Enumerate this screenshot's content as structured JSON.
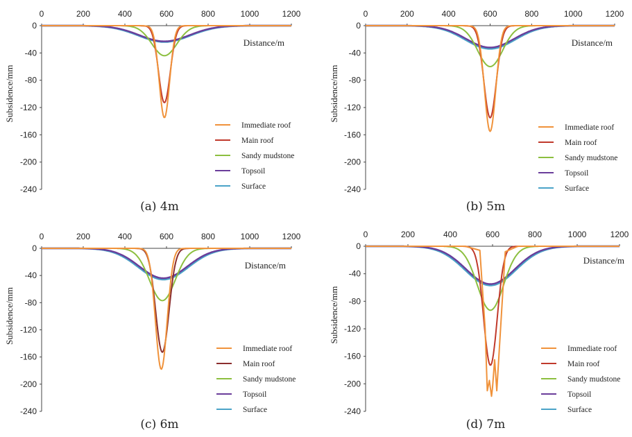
{
  "chart_data": [
    {
      "type": "line",
      "caption": "(a) 4m",
      "xlabel": "Distance/m",
      "ylabel": "Subsidence/mm",
      "xlim": [
        0,
        1200
      ],
      "ylim": [
        -240,
        0
      ],
      "xticks": [
        "0",
        "200",
        "400",
        "600",
        "800",
        "1000",
        "1200"
      ],
      "yticks": [
        "0",
        "-40",
        "-80",
        "-120",
        "-160",
        "-200",
        "-240"
      ],
      "legend_position": "bottom-right",
      "series": [
        {
          "name": "Immediate roof",
          "color": "#f0923a",
          "center": 590,
          "peak": -135,
          "width": 25,
          "start": 470,
          "end": 700,
          "x": [
            0,
            470,
            530,
            560,
            575,
            590,
            605,
            620,
            650,
            700,
            1200
          ],
          "y": [
            0,
            0,
            -5,
            -60,
            -120,
            -135,
            -120,
            -60,
            -5,
            0,
            0
          ]
        },
        {
          "name": "Main roof",
          "color": "#c0392b",
          "center": 590,
          "peak": -113,
          "width": 28,
          "start": 460,
          "end": 710,
          "x": [
            0,
            460,
            525,
            560,
            575,
            590,
            605,
            620,
            655,
            710,
            1200
          ],
          "y": [
            0,
            0,
            -5,
            -55,
            -100,
            -113,
            -100,
            -55,
            -5,
            0,
            0
          ]
        },
        {
          "name": "Sandy mudstone",
          "color": "#8cbf3f",
          "center": 590,
          "peak": -44,
          "width": 60,
          "start": 380,
          "end": 800,
          "x": [
            0,
            380,
            480,
            540,
            570,
            590,
            610,
            640,
            700,
            800,
            1200
          ],
          "y": [
            0,
            0,
            -5,
            -25,
            -40,
            -44,
            -40,
            -25,
            -5,
            0,
            0
          ]
        },
        {
          "name": "Topsoil",
          "color": "#6a3d9a",
          "center": 590,
          "peak": -23,
          "width": 120,
          "start": 200,
          "end": 980,
          "x": [
            0,
            200,
            350,
            450,
            520,
            590,
            660,
            730,
            830,
            980,
            1200
          ],
          "y": [
            0,
            0,
            -4,
            -12,
            -20,
            -23,
            -20,
            -12,
            -4,
            0,
            0
          ]
        },
        {
          "name": "Surface",
          "color": "#4aa3c8",
          "center": 590,
          "peak": -24,
          "width": 125,
          "start": 200,
          "end": 990,
          "x": [
            0,
            200,
            350,
            450,
            520,
            590,
            660,
            730,
            830,
            990,
            1200
          ],
          "y": [
            0,
            0,
            -4,
            -12,
            -21,
            -24,
            -21,
            -12,
            -4,
            0,
            0
          ]
        }
      ]
    },
    {
      "type": "line",
      "caption": "(b) 5m",
      "xlabel": "Distance/m",
      "ylabel": "Subsidence/mm",
      "xlim": [
        0,
        1200
      ],
      "ylim": [
        -240,
        0
      ],
      "xticks": [
        "0",
        "200",
        "400",
        "600",
        "800",
        "1000",
        "1200"
      ],
      "yticks": [
        "0",
        "-40",
        "-80",
        "-120",
        "-160",
        "-200",
        "-240"
      ],
      "legend_position": "bottom-right",
      "series": [
        {
          "name": "Immediate roof",
          "color": "#f0923a",
          "center": 600,
          "peak": -155,
          "width": 27,
          "start": 470,
          "end": 720,
          "x": [
            0,
            470,
            535,
            570,
            585,
            600,
            615,
            630,
            665,
            720,
            1200
          ],
          "y": [
            0,
            0,
            -5,
            -70,
            -138,
            -155,
            -138,
            -70,
            -5,
            0,
            0
          ]
        },
        {
          "name": "Main roof",
          "color": "#c0392b",
          "center": 600,
          "peak": -135,
          "width": 30,
          "start": 460,
          "end": 730,
          "x": [
            0,
            460,
            530,
            568,
            584,
            600,
            616,
            632,
            670,
            730,
            1200
          ],
          "y": [
            0,
            0,
            -5,
            -65,
            -120,
            -135,
            -120,
            -65,
            -5,
            0,
            0
          ]
        },
        {
          "name": "Sandy mudstone",
          "color": "#8cbf3f",
          "center": 600,
          "peak": -60,
          "width": 60,
          "start": 380,
          "end": 820,
          "x": [
            0,
            380,
            490,
            550,
            580,
            600,
            620,
            650,
            710,
            820,
            1200
          ],
          "y": [
            0,
            0,
            -6,
            -35,
            -55,
            -60,
            -55,
            -35,
            -6,
            0,
            0
          ]
        },
        {
          "name": "Topsoil",
          "color": "#6a3d9a",
          "center": 600,
          "peak": -32,
          "width": 115,
          "start": 200,
          "end": 1000,
          "x": [
            0,
            200,
            360,
            460,
            530,
            600,
            670,
            740,
            840,
            1000,
            1200
          ],
          "y": [
            0,
            0,
            -5,
            -17,
            -28,
            -32,
            -28,
            -17,
            -5,
            0,
            0
          ]
        },
        {
          "name": "Surface",
          "color": "#4aa3c8",
          "center": 600,
          "peak": -34,
          "width": 120,
          "start": 200,
          "end": 1000,
          "x": [
            0,
            200,
            360,
            460,
            530,
            600,
            670,
            740,
            840,
            1000,
            1200
          ],
          "y": [
            0,
            0,
            -5,
            -18,
            -30,
            -34,
            -30,
            -18,
            -5,
            0,
            0
          ]
        }
      ]
    },
    {
      "type": "line",
      "caption": "(c) 6m",
      "xlabel": "Distance/m",
      "ylabel": "Subsidence/mm",
      "xlim": [
        0,
        1200
      ],
      "ylim": [
        -240,
        0
      ],
      "xticks": [
        "0",
        "200",
        "400",
        "600",
        "800",
        "1000",
        "1200"
      ],
      "yticks": [
        "0",
        "-40",
        "-80",
        "-120",
        "-160",
        "-200",
        "-240"
      ],
      "legend_position": "bottom-right",
      "series": [
        {
          "name": "Immediate roof",
          "color": "#f0923a",
          "center": 575,
          "peak": -178,
          "width": 28,
          "start": 450,
          "end": 700,
          "x": [
            0,
            450,
            520,
            555,
            565,
            575,
            590,
            605,
            640,
            700,
            1200
          ],
          "y": [
            0,
            0,
            -5,
            -90,
            -170,
            -178,
            -160,
            -80,
            -5,
            0,
            0
          ]
        },
        {
          "name": "Main roof",
          "color": "#8b2e2e",
          "center": 580,
          "peak": -153,
          "width": 32,
          "start": 440,
          "end": 720,
          "x": [
            0,
            440,
            515,
            550,
            566,
            580,
            596,
            612,
            650,
            720,
            1200
          ],
          "y": [
            0,
            0,
            -5,
            -75,
            -138,
            -153,
            -138,
            -75,
            -5,
            0,
            0
          ]
        },
        {
          "name": "Sandy mudstone",
          "color": "#8cbf3f",
          "center": 580,
          "peak": -77,
          "width": 62,
          "start": 360,
          "end": 810,
          "x": [
            0,
            360,
            470,
            530,
            560,
            580,
            600,
            630,
            690,
            810,
            1200
          ],
          "y": [
            0,
            0,
            -7,
            -44,
            -70,
            -77,
            -70,
            -44,
            -7,
            0,
            0
          ]
        },
        {
          "name": "Topsoil",
          "color": "#6a3d9a",
          "center": 585,
          "peak": -44,
          "width": 115,
          "start": 180,
          "end": 1000,
          "x": [
            0,
            180,
            340,
            445,
            515,
            585,
            655,
            725,
            830,
            1000,
            1200
          ],
          "y": [
            0,
            0,
            -6,
            -24,
            -38,
            -44,
            -38,
            -24,
            -6,
            0,
            0
          ]
        },
        {
          "name": "Surface",
          "color": "#4aa3c8",
          "center": 585,
          "peak": -46,
          "width": 120,
          "start": 180,
          "end": 1000,
          "x": [
            0,
            180,
            340,
            445,
            515,
            585,
            655,
            725,
            830,
            1000,
            1200
          ],
          "y": [
            0,
            0,
            -6,
            -25,
            -40,
            -46,
            -40,
            -25,
            -6,
            0,
            0
          ]
        }
      ]
    },
    {
      "type": "line",
      "caption": "(d) 7m",
      "xlabel": "Distance/m",
      "ylabel": "Subsidence/mm",
      "xlim": [
        0,
        1200
      ],
      "ylim": [
        -240,
        0
      ],
      "xticks": [
        "0",
        "200",
        "400",
        "600",
        "800",
        "1000",
        "1200"
      ],
      "yticks": [
        "0",
        "-40",
        "-80",
        "-120",
        "-160",
        "-200",
        "-240"
      ],
      "legend_position": "bottom-right",
      "series": [
        {
          "name": "Immediate roof",
          "color": "#f0923a",
          "center": 590,
          "peak": -218,
          "width": 28,
          "start": 470,
          "end": 720,
          "x": [
            0,
            470,
            540,
            565,
            575,
            585,
            595,
            600,
            610,
            620,
            660,
            720,
            1200
          ],
          "y": [
            0,
            0,
            -6,
            -120,
            -210,
            -195,
            -218,
            -205,
            -165,
            -210,
            -8,
            0,
            0
          ]
        },
        {
          "name": "Main roof",
          "color": "#c0392b",
          "center": 590,
          "peak": -173,
          "width": 32,
          "start": 460,
          "end": 730,
          "x": [
            0,
            460,
            530,
            565,
            578,
            590,
            602,
            615,
            655,
            730,
            1200
          ],
          "y": [
            0,
            0,
            -6,
            -95,
            -160,
            -173,
            -160,
            -95,
            -6,
            0,
            0
          ]
        },
        {
          "name": "Sandy mudstone",
          "color": "#8cbf3f",
          "center": 590,
          "peak": -93,
          "width": 62,
          "start": 370,
          "end": 820,
          "x": [
            0,
            370,
            480,
            540,
            570,
            590,
            610,
            640,
            700,
            820,
            1200
          ],
          "y": [
            0,
            0,
            -8,
            -54,
            -85,
            -93,
            -85,
            -54,
            -8,
            0,
            0
          ]
        },
        {
          "name": "Topsoil",
          "color": "#6a3d9a",
          "center": 590,
          "peak": -55,
          "width": 115,
          "start": 180,
          "end": 1000,
          "x": [
            0,
            180,
            345,
            450,
            520,
            590,
            660,
            730,
            835,
            1000,
            1200
          ],
          "y": [
            0,
            0,
            -7,
            -30,
            -48,
            -55,
            -48,
            -30,
            -7,
            0,
            0
          ]
        },
        {
          "name": "Surface",
          "color": "#4aa3c8",
          "center": 590,
          "peak": -57,
          "width": 120,
          "start": 180,
          "end": 1000,
          "x": [
            0,
            180,
            345,
            450,
            520,
            590,
            660,
            730,
            835,
            1000,
            1200
          ],
          "y": [
            0,
            0,
            -7,
            -31,
            -50,
            -57,
            -50,
            -31,
            -7,
            0,
            0
          ]
        }
      ]
    }
  ]
}
